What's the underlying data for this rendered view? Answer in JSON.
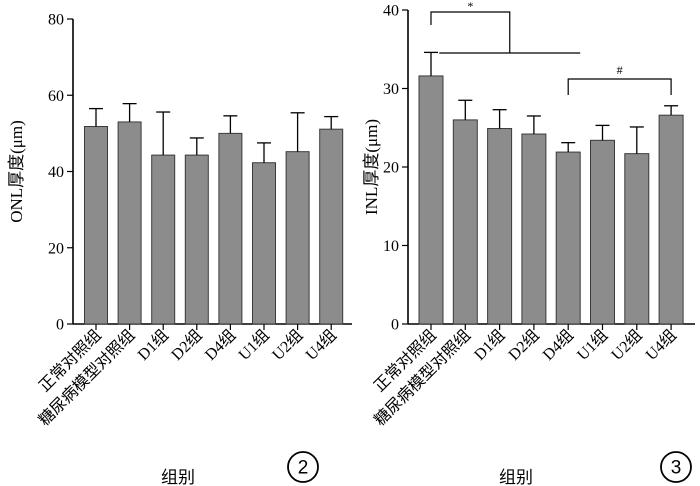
{
  "chart_data": [
    {
      "type": "bar",
      "panel_number": "2",
      "ylabel": "ONL厚度(μm)",
      "xlabel": "组别",
      "ylim": [
        0,
        80
      ],
      "yticks": [
        0,
        20,
        40,
        60,
        80
      ],
      "categories": [
        "正常对照组",
        "糖尿病模型对照组",
        "D1组",
        "D2组",
        "D4组",
        "U1组",
        "U2组",
        "U4组"
      ],
      "values": [
        51.8,
        53.0,
        44.3,
        44.3,
        50.0,
        42.3,
        45.2,
        51.1
      ],
      "errors": [
        4.7,
        4.8,
        11.3,
        4.5,
        4.6,
        5.2,
        10.2,
        3.3
      ],
      "grid": false
    },
    {
      "type": "bar",
      "panel_number": "3",
      "ylabel": "INL厚度(μm)",
      "xlabel": "组别",
      "ylim": [
        0,
        40
      ],
      "yticks": [
        0,
        10,
        20,
        30,
        40
      ],
      "categories": [
        "正常对照组",
        "糖尿病模型对照组",
        "D1组",
        "D2组",
        "D4组",
        "U1组",
        "U2组",
        "U4组"
      ],
      "values": [
        31.6,
        26.0,
        24.9,
        24.2,
        21.9,
        23.4,
        21.7,
        26.6
      ],
      "errors": [
        3.0,
        2.5,
        2.4,
        2.3,
        1.2,
        1.9,
        3.4,
        1.2
      ],
      "grid": false,
      "annotations": [
        {
          "symbol": "*",
          "from_group": "正常对照组",
          "to_groups": [
            "糖尿病模型对照组",
            "D1组",
            "D2组",
            "D4组"
          ]
        },
        {
          "symbol": "#",
          "from_group": "D4组",
          "to_group": "U4组"
        }
      ]
    }
  ]
}
